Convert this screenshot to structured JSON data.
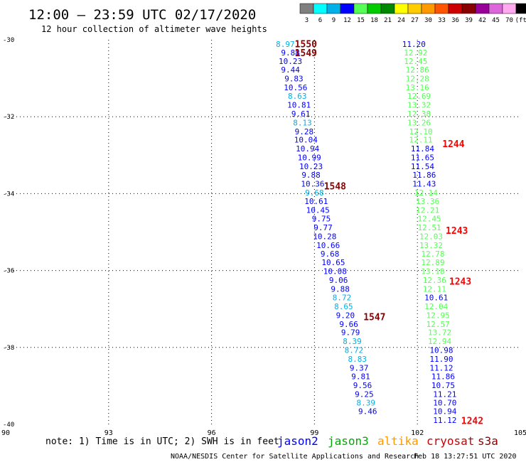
{
  "header": {
    "title": "12:00 – 23:59 UTC 02/17/2020",
    "subtitle": "12 hour collection of altimeter wave heights"
  },
  "colorbar": {
    "labels": [
      "3",
      "6",
      "9",
      "12",
      "15",
      "18",
      "21",
      "24",
      "27",
      "30",
      "33",
      "36",
      "39",
      "42",
      "45",
      "70",
      "(ft)"
    ],
    "colors": [
      "#7f7f7f",
      "#00ffff",
      "#00b0e8",
      "#0000ff",
      "#55ff55",
      "#00cc00",
      "#008800",
      "#ffff00",
      "#ffcc00",
      "#ff9900",
      "#ff5500",
      "#cc0000",
      "#880000",
      "#990099",
      "#dd66dd",
      "#ffaaee",
      "#000000"
    ]
  },
  "footer": {
    "note": "note: 1) Time is in UTC; 2) SWH is in feet",
    "credit": "NOAA/NESDIS Center for Satellite Applications and Research",
    "timestamp": "Feb 18 13:27:51 UTC 2020",
    "legend": [
      {
        "name": "jason2",
        "color": "#0000ff"
      },
      {
        "name": "jason3",
        "color": "#00aa00"
      },
      {
        "name": "altika",
        "color": "#ff9900"
      },
      {
        "name": "cryosat",
        "color": "#cc0000"
      },
      {
        "name": "s3a",
        "color": "#880000"
      }
    ]
  },
  "chart_data": {
    "type": "scatter",
    "xlim": [
      90,
      105
    ],
    "ylim": [
      -40,
      -30
    ],
    "x_ticks": [
      "90",
      "93",
      "96",
      "99",
      "102",
      "105"
    ],
    "y_ticks": [
      "-30",
      "-32",
      "-34",
      "-36",
      "-38",
      "-40"
    ],
    "grid": true,
    "series": [
      {
        "name": "track_left",
        "points": [
          {
            "x": 98.15,
            "y": -30.11,
            "v": "8.97",
            "c": "#00b0e8"
          },
          {
            "x": 98.3,
            "y": -30.33,
            "v": "9.88",
            "c": "#0000ff"
          },
          {
            "x": 98.3,
            "y": -30.55,
            "v": "10.23",
            "c": "#0000ff"
          },
          {
            "x": 98.3,
            "y": -30.78,
            "v": "9.44",
            "c": "#0000ff"
          },
          {
            "x": 98.4,
            "y": -31.01,
            "v": "9.83",
            "c": "#0000ff"
          },
          {
            "x": 98.45,
            "y": -31.24,
            "v": "10.56",
            "c": "#0000ff"
          },
          {
            "x": 98.5,
            "y": -31.46,
            "v": "8.63",
            "c": "#00b0e8"
          },
          {
            "x": 98.55,
            "y": -31.69,
            "v": "10.81",
            "c": "#0000ff"
          },
          {
            "x": 98.6,
            "y": -31.92,
            "v": "9.61",
            "c": "#0000ff"
          },
          {
            "x": 98.65,
            "y": -32.15,
            "v": "8.13",
            "c": "#00b0e8"
          },
          {
            "x": 98.7,
            "y": -32.38,
            "v": "9.28",
            "c": "#0000ff"
          },
          {
            "x": 98.75,
            "y": -32.6,
            "v": "10.04",
            "c": "#0000ff"
          },
          {
            "x": 98.8,
            "y": -32.83,
            "v": "10.94",
            "c": "#0000ff"
          },
          {
            "x": 98.85,
            "y": -33.06,
            "v": "10.99",
            "c": "#0000ff"
          },
          {
            "x": 98.9,
            "y": -33.29,
            "v": "10.23",
            "c": "#0000ff"
          },
          {
            "x": 98.9,
            "y": -33.51,
            "v": "9.88",
            "c": "#0000ff"
          },
          {
            "x": 98.95,
            "y": -33.74,
            "v": "10.36",
            "c": "#0000ff"
          },
          {
            "x": 99.0,
            "y": -33.97,
            "v": "9.68",
            "c": "#00b0e8"
          },
          {
            "x": 99.05,
            "y": -34.2,
            "v": "10.61",
            "c": "#0000ff"
          },
          {
            "x": 99.1,
            "y": -34.43,
            "v": "10.45",
            "c": "#0000ff"
          },
          {
            "x": 99.2,
            "y": -34.65,
            "v": "9.75",
            "c": "#0000ff"
          },
          {
            "x": 99.25,
            "y": -34.88,
            "v": "9.77",
            "c": "#0000ff"
          },
          {
            "x": 99.3,
            "y": -35.11,
            "v": "10.28",
            "c": "#0000ff"
          },
          {
            "x": 99.4,
            "y": -35.34,
            "v": "10.66",
            "c": "#0000ff"
          },
          {
            "x": 99.45,
            "y": -35.56,
            "v": "9.68",
            "c": "#0000ff"
          },
          {
            "x": 99.55,
            "y": -35.79,
            "v": "10.65",
            "c": "#0000ff"
          },
          {
            "x": 99.6,
            "y": -36.02,
            "v": "10.08",
            "c": "#0000ff"
          },
          {
            "x": 99.7,
            "y": -36.25,
            "v": "9.06",
            "c": "#0000ff"
          },
          {
            "x": 99.75,
            "y": -36.48,
            "v": "9.88",
            "c": "#0000ff"
          },
          {
            "x": 99.8,
            "y": -36.7,
            "v": "8.72",
            "c": "#00b0e8"
          },
          {
            "x": 99.85,
            "y": -36.93,
            "v": "8.65",
            "c": "#00b0e8"
          },
          {
            "x": 99.9,
            "y": -37.16,
            "v": "9.20",
            "c": "#0000ff"
          },
          {
            "x": 100.0,
            "y": -37.39,
            "v": "9.66",
            "c": "#0000ff"
          },
          {
            "x": 100.05,
            "y": -37.61,
            "v": "9.79",
            "c": "#0000ff"
          },
          {
            "x": 100.1,
            "y": -37.84,
            "v": "8.39",
            "c": "#00b0e8"
          },
          {
            "x": 100.15,
            "y": -38.07,
            "v": "8.72",
            "c": "#00b0e8"
          },
          {
            "x": 100.25,
            "y": -38.3,
            "v": "8.83",
            "c": "#00b0e8"
          },
          {
            "x": 100.3,
            "y": -38.53,
            "v": "9.37",
            "c": "#0000ff"
          },
          {
            "x": 100.35,
            "y": -38.75,
            "v": "9.81",
            "c": "#0000ff"
          },
          {
            "x": 100.4,
            "y": -38.98,
            "v": "9.56",
            "c": "#0000ff"
          },
          {
            "x": 100.45,
            "y": -39.21,
            "v": "9.25",
            "c": "#0000ff"
          },
          {
            "x": 100.5,
            "y": -39.44,
            "v": "8.39",
            "c": "#00b0e8"
          },
          {
            "x": 100.55,
            "y": -39.66,
            "v": "9.46",
            "c": "#0000ff"
          }
        ]
      },
      {
        "name": "track_right",
        "points": [
          {
            "x": 101.9,
            "y": -30.11,
            "v": "11.20",
            "c": "#0000ff"
          },
          {
            "x": 101.95,
            "y": -30.33,
            "v": "12.92",
            "c": "#55ff55"
          },
          {
            "x": 101.95,
            "y": -30.55,
            "v": "12.45",
            "c": "#55ff55"
          },
          {
            "x": 102.0,
            "y": -30.78,
            "v": "12.86",
            "c": "#55ff55"
          },
          {
            "x": 102.0,
            "y": -31.01,
            "v": "12.28",
            "c": "#55ff55"
          },
          {
            "x": 102.0,
            "y": -31.24,
            "v": "13.16",
            "c": "#55ff55"
          },
          {
            "x": 102.05,
            "y": -31.46,
            "v": "12.69",
            "c": "#55ff55"
          },
          {
            "x": 102.05,
            "y": -31.69,
            "v": "13.32",
            "c": "#55ff55"
          },
          {
            "x": 102.05,
            "y": -31.92,
            "v": "12.38",
            "c": "#55ff55"
          },
          {
            "x": 102.05,
            "y": -32.15,
            "v": "13.26",
            "c": "#55ff55"
          },
          {
            "x": 102.1,
            "y": -32.38,
            "v": "12.10",
            "c": "#55ff55"
          },
          {
            "x": 102.1,
            "y": -32.6,
            "v": "12.11",
            "c": "#55ff55"
          },
          {
            "x": 102.15,
            "y": -32.83,
            "v": "11.84",
            "c": "#0000ff"
          },
          {
            "x": 102.15,
            "y": -33.06,
            "v": "11.65",
            "c": "#0000ff"
          },
          {
            "x": 102.15,
            "y": -33.29,
            "v": "11.54",
            "c": "#0000ff"
          },
          {
            "x": 102.2,
            "y": -33.51,
            "v": "11.86",
            "c": "#0000ff"
          },
          {
            "x": 102.2,
            "y": -33.74,
            "v": "11.43",
            "c": "#0000ff"
          },
          {
            "x": 102.25,
            "y": -33.97,
            "v": "12.14",
            "c": "#55ff55"
          },
          {
            "x": 102.3,
            "y": -34.2,
            "v": "13.36",
            "c": "#55ff55"
          },
          {
            "x": 102.3,
            "y": -34.43,
            "v": "12.21",
            "c": "#55ff55"
          },
          {
            "x": 102.35,
            "y": -34.65,
            "v": "12.45",
            "c": "#55ff55"
          },
          {
            "x": 102.35,
            "y": -34.88,
            "v": "12.51",
            "c": "#55ff55"
          },
          {
            "x": 102.4,
            "y": -35.11,
            "v": "12.03",
            "c": "#55ff55"
          },
          {
            "x": 102.4,
            "y": -35.34,
            "v": "13.32",
            "c": "#55ff55"
          },
          {
            "x": 102.45,
            "y": -35.56,
            "v": "12.78",
            "c": "#55ff55"
          },
          {
            "x": 102.45,
            "y": -35.79,
            "v": "12.89",
            "c": "#55ff55"
          },
          {
            "x": 102.45,
            "y": -36.02,
            "v": "13.18",
            "c": "#55ff55"
          },
          {
            "x": 102.5,
            "y": -36.25,
            "v": "12.36",
            "c": "#55ff55"
          },
          {
            "x": 102.5,
            "y": -36.48,
            "v": "12.11",
            "c": "#55ff55"
          },
          {
            "x": 102.55,
            "y": -36.7,
            "v": "10.61",
            "c": "#0000ff"
          },
          {
            "x": 102.55,
            "y": -36.93,
            "v": "12.04",
            "c": "#55ff55"
          },
          {
            "x": 102.6,
            "y": -37.16,
            "v": "12.95",
            "c": "#55ff55"
          },
          {
            "x": 102.6,
            "y": -37.39,
            "v": "12.57",
            "c": "#55ff55"
          },
          {
            "x": 102.65,
            "y": -37.61,
            "v": "13.72",
            "c": "#55ff55"
          },
          {
            "x": 102.65,
            "y": -37.84,
            "v": "12.94",
            "c": "#55ff55"
          },
          {
            "x": 102.7,
            "y": -38.07,
            "v": "10.98",
            "c": "#0000ff"
          },
          {
            "x": 102.7,
            "y": -38.3,
            "v": "11.90",
            "c": "#0000ff"
          },
          {
            "x": 102.7,
            "y": -38.53,
            "v": "11.12",
            "c": "#0000ff"
          },
          {
            "x": 102.75,
            "y": -38.75,
            "v": "11.86",
            "c": "#0000ff"
          },
          {
            "x": 102.75,
            "y": -38.98,
            "v": "10.75",
            "c": "#0000ff"
          },
          {
            "x": 102.8,
            "y": -39.21,
            "v": "11.21",
            "c": "#0000ff"
          },
          {
            "x": 102.8,
            "y": -39.44,
            "v": "10.70",
            "c": "#0000ff"
          },
          {
            "x": 102.8,
            "y": -39.66,
            "v": "10.94",
            "c": "#0000ff"
          },
          {
            "x": 102.8,
            "y": -39.89,
            "v": "11.12",
            "c": "#0000ff"
          }
        ]
      }
    ],
    "time_labels": [
      {
        "x": 98.75,
        "y": -30.1,
        "v": "1550",
        "c": "#880000"
      },
      {
        "x": 98.75,
        "y": -30.33,
        "v": "1549",
        "c": "#880000"
      },
      {
        "x": 99.6,
        "y": -33.8,
        "v": "1548",
        "c": "#880000"
      },
      {
        "x": 100.75,
        "y": -37.2,
        "v": "1547",
        "c": "#880000"
      },
      {
        "x": 103.05,
        "y": -32.7,
        "v": "1244",
        "c": "#ff0000"
      },
      {
        "x": 103.15,
        "y": -34.95,
        "v": "1243",
        "c": "#ff0000"
      },
      {
        "x": 103.25,
        "y": -36.28,
        "v": "1243",
        "c": "#ff0000"
      },
      {
        "x": 103.6,
        "y": -39.9,
        "v": "1242",
        "c": "#ff0000"
      }
    ]
  }
}
